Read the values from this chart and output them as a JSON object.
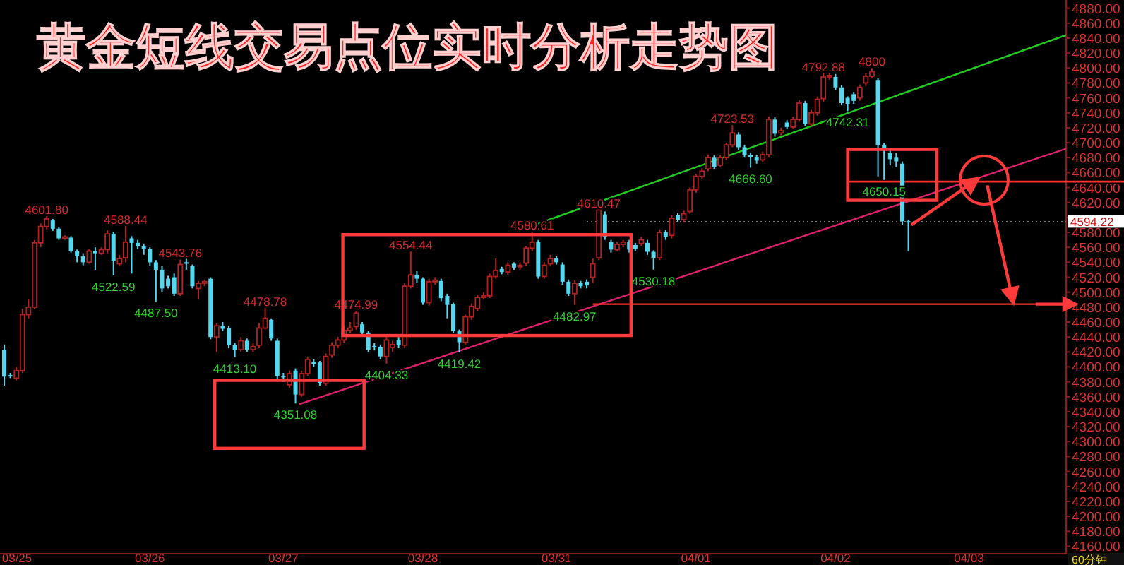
{
  "chart_data": {
    "type": "candlestick",
    "title": "黄金短线交易点位实时分析走势图",
    "categories": [
      null,
      "03/25",
      null,
      null,
      null,
      null,
      null,
      null,
      null,
      null,
      null,
      null,
      null,
      null,
      null,
      null,
      null,
      null,
      null,
      null,
      null,
      null,
      null,
      null,
      "03/26",
      null,
      null,
      null,
      null,
      null,
      null,
      null,
      null,
      null,
      null,
      null,
      null,
      null,
      null,
      null,
      null,
      null,
      null,
      null,
      null,
      null,
      "03/27",
      null,
      null,
      null,
      null,
      null,
      null,
      null,
      null,
      null,
      null,
      null,
      null,
      null,
      null,
      null,
      null,
      null,
      null,
      null,
      null,
      null,
      null,
      "03/28",
      null,
      null,
      null,
      null,
      null,
      null,
      null,
      null,
      null,
      null,
      null,
      null,
      null,
      null,
      null,
      null,
      null,
      null,
      null,
      null,
      null,
      "03/31",
      null,
      null,
      null,
      null,
      null,
      null,
      null,
      null,
      null,
      null,
      null,
      null,
      null,
      null,
      null,
      null,
      null,
      null,
      null,
      null,
      null,
      null,
      "04/01",
      null,
      null,
      null,
      null,
      null,
      null,
      null,
      null,
      null,
      null,
      null,
      null,
      null,
      null,
      null,
      null,
      null,
      null,
      null,
      null,
      null,
      null,
      "04/02",
      null,
      null,
      null,
      null,
      null,
      null,
      null,
      null,
      null,
      null,
      null,
      null,
      null,
      null,
      null,
      null,
      null,
      null,
      null,
      null,
      null,
      "04/03",
      null,
      null,
      null,
      null,
      null,
      null,
      null,
      null,
      null,
      null,
      null,
      null,
      null,
      null,
      null,
      null
    ],
    "ohlc": [
      [
        4423,
        4430,
        4375,
        4387
      ],
      [
        4389,
        4392,
        4385,
        4388
      ],
      [
        4385,
        4400,
        4382,
        4395
      ],
      [
        4395,
        4478,
        4392,
        4470
      ],
      [
        4470,
        4490,
        4465,
        4480
      ],
      [
        4480,
        4570,
        4478,
        4566
      ],
      [
        4566,
        4592,
        4560,
        4588
      ],
      [
        4588,
        4601.8,
        4584,
        4598
      ],
      [
        4596,
        4598,
        4582,
        4585
      ],
      [
        4585,
        4587,
        4570,
        4572
      ],
      [
        4572,
        4576,
        4570,
        4574
      ],
      [
        4573,
        4575,
        4553,
        4555
      ],
      [
        4555,
        4557,
        4540,
        4548
      ],
      [
        4548,
        4552,
        4536,
        4540
      ],
      [
        4540,
        4558,
        4538,
        4555
      ],
      [
        4555,
        4560,
        4530,
        4552
      ],
      [
        4552,
        4560,
        4550,
        4557
      ],
      [
        4557,
        4583,
        4552,
        4578
      ],
      [
        4578,
        4581,
        4522.59,
        4542
      ],
      [
        4538,
        4550,
        4535,
        4545
      ],
      [
        4546,
        4588.44,
        4540,
        4567
      ],
      [
        4572,
        4575,
        4525,
        4566
      ],
      [
        4566,
        4570,
        4558,
        4562
      ],
      [
        4562,
        4565,
        4550,
        4558
      ],
      [
        4558,
        4560,
        4535,
        4540
      ],
      [
        4540,
        4543,
        4487.5,
        4530
      ],
      [
        4530,
        4535,
        4500,
        4505
      ],
      [
        4518,
        4522,
        4505,
        4508
      ],
      [
        4520,
        4525,
        4495,
        4498
      ],
      [
        4498,
        4543.76,
        4495,
        4537
      ],
      [
        4540,
        4548,
        4530,
        4538
      ],
      [
        4535,
        4537,
        4505,
        4508
      ],
      [
        4505,
        4515,
        4490,
        4512
      ],
      [
        4512,
        4517,
        4508,
        4514
      ],
      [
        4518,
        4520,
        4437,
        4440
      ],
      [
        4440,
        4458,
        4420,
        4455
      ],
      [
        4455,
        4460,
        4448,
        4451
      ],
      [
        4452,
        4455,
        4425,
        4429
      ],
      [
        4429,
        4432,
        4413.1,
        4423
      ],
      [
        4423,
        4440,
        4420,
        4435
      ],
      [
        4435,
        4438,
        4420,
        4423
      ],
      [
        4423,
        4432,
        4420,
        4427
      ],
      [
        4429,
        4458,
        4425,
        4452
      ],
      [
        4452,
        4478.78,
        4450,
        4465
      ],
      [
        4463,
        4465,
        4435,
        4438
      ],
      [
        4435,
        4438,
        4380,
        4388
      ],
      [
        4388,
        4392,
        4380,
        4386
      ],
      [
        4376,
        4395,
        4372,
        4391
      ],
      [
        4395,
        4398,
        4351.08,
        4363
      ],
      [
        4363,
        4395,
        4360,
        4391
      ],
      [
        4391,
        4414,
        4388,
        4410
      ],
      [
        4407,
        4410,
        4400,
        4404
      ],
      [
        4406,
        4408,
        4375,
        4378
      ],
      [
        4378,
        4418,
        4375,
        4414
      ],
      [
        4416,
        4433,
        4412,
        4429
      ],
      [
        4429,
        4440,
        4425,
        4436
      ],
      [
        4436,
        4455,
        4432,
        4449
      ],
      [
        4449,
        4460,
        4445,
        4452
      ],
      [
        4454,
        4474.99,
        4450,
        4472
      ],
      [
        4457,
        4460,
        4443,
        4446
      ],
      [
        4446,
        4448,
        4420,
        4423
      ],
      [
        4428,
        4432,
        4422,
        4426
      ],
      [
        4427,
        4430,
        4410,
        4414
      ],
      [
        4414,
        4440,
        4404.33,
        4436
      ],
      [
        4426,
        4435,
        4420,
        4430
      ],
      [
        4436,
        4440,
        4425,
        4429
      ],
      [
        4429,
        4512,
        4425,
        4508
      ],
      [
        4508,
        4554.44,
        4505,
        4523
      ],
      [
        4523,
        4528,
        4512,
        4518
      ],
      [
        4518,
        4520,
        4483,
        4486
      ],
      [
        4486,
        4518,
        4482,
        4514
      ],
      [
        4514,
        4520,
        4510,
        4516
      ],
      [
        4515,
        4518,
        4488,
        4492
      ],
      [
        4495,
        4498,
        4465,
        4483
      ],
      [
        4484,
        4486,
        4445,
        4448
      ],
      [
        4448,
        4450,
        4419.42,
        4433
      ],
      [
        4433,
        4470,
        4430,
        4467
      ],
      [
        4467,
        4485,
        4463,
        4481
      ],
      [
        4478,
        4497,
        4475,
        4493
      ],
      [
        4493,
        4500,
        4490,
        4495
      ],
      [
        4495,
        4525,
        4492,
        4521
      ],
      [
        4521,
        4545,
        4518,
        4529
      ],
      [
        4531,
        4534,
        4524,
        4527
      ],
      [
        4527,
        4540,
        4523,
        4536
      ],
      [
        4538,
        4540,
        4530,
        4533
      ],
      [
        4534,
        4540,
        4530,
        4536
      ],
      [
        4539,
        4562,
        4535,
        4559
      ],
      [
        4559,
        4580.61,
        4555,
        4567
      ],
      [
        4567,
        4570,
        4518,
        4521
      ],
      [
        4521,
        4540,
        4518,
        4536
      ],
      [
        4538,
        4550,
        4535,
        4545
      ],
      [
        4545,
        4548,
        4537,
        4540
      ],
      [
        4537,
        4540,
        4510,
        4514
      ],
      [
        4514,
        4517,
        4495,
        4498
      ],
      [
        4498,
        4516,
        4482.97,
        4512
      ],
      [
        4512,
        4515,
        4505,
        4508
      ],
      [
        4514,
        4517,
        4505,
        4509
      ],
      [
        4520,
        4545,
        4512,
        4538
      ],
      [
        4546,
        4610.47,
        4543,
        4610
      ],
      [
        4604,
        4608,
        4570,
        4574
      ],
      [
        4567,
        4570,
        4553,
        4557
      ],
      [
        4557,
        4567,
        4555,
        4564
      ],
      [
        4564,
        4570,
        4560,
        4567
      ],
      [
        4567,
        4570,
        4553,
        4557
      ],
      [
        4563,
        4566,
        4555,
        4558
      ],
      [
        4565,
        4574,
        4562,
        4570
      ],
      [
        4566,
        4570,
        4550,
        4554
      ],
      [
        4554,
        4556,
        4530.18,
        4546
      ],
      [
        4546,
        4584,
        4543,
        4580
      ],
      [
        4580,
        4583,
        4570,
        4574
      ],
      [
        4576,
        4603,
        4572,
        4599
      ],
      [
        4603,
        4606,
        4594,
        4597
      ],
      [
        4597,
        4609,
        4593,
        4605
      ],
      [
        4608,
        4640,
        4605,
        4637
      ],
      [
        4637,
        4658,
        4633,
        4655
      ],
      [
        4655,
        4666,
        4652,
        4662
      ],
      [
        4665,
        4684,
        4662,
        4680
      ],
      [
        4680,
        4683,
        4664,
        4667
      ],
      [
        4670,
        4684,
        4667,
        4680
      ],
      [
        4680,
        4700,
        4677,
        4697
      ],
      [
        4697,
        4723.53,
        4694,
        4713
      ],
      [
        4711,
        4714,
        4690,
        4694
      ],
      [
        4694,
        4697,
        4680,
        4684
      ],
      [
        4684,
        4687,
        4666.6,
        4681
      ],
      [
        4681,
        4684,
        4672,
        4676
      ],
      [
        4677,
        4688,
        4674,
        4684
      ],
      [
        4684,
        4735,
        4680,
        4731
      ],
      [
        4731,
        4734,
        4708,
        4712
      ],
      [
        4713,
        4720,
        4710,
        4716
      ],
      [
        4727,
        4730,
        4718,
        4721
      ],
      [
        4721,
        4735,
        4718,
        4731
      ],
      [
        4731,
        4757,
        4728,
        4753
      ],
      [
        4753,
        4756,
        4722,
        4725
      ],
      [
        4725,
        4744,
        4722,
        4740
      ],
      [
        4740,
        4762,
        4736,
        4758
      ],
      [
        4759,
        4792.88,
        4755,
        4788
      ],
      [
        4788,
        4795,
        4784,
        4790
      ],
      [
        4788,
        4792,
        4770,
        4774
      ],
      [
        4774,
        4777,
        4750,
        4753
      ],
      [
        4760,
        4762,
        4742.31,
        4752
      ],
      [
        4765,
        4768,
        4752,
        4756
      ],
      [
        4760,
        4778,
        4756,
        4774
      ],
      [
        4780,
        4793,
        4776,
        4789
      ],
      [
        4789,
        4800,
        4786,
        4795
      ],
      [
        4784,
        4786,
        4655,
        4697
      ],
      [
        4697,
        4700,
        4650.15,
        4691
      ],
      [
        4686,
        4690,
        4670,
        4678
      ],
      [
        4680,
        4686,
        4668,
        4675
      ],
      [
        4672,
        4675,
        4590,
        4595
      ],
      [
        4595,
        4597,
        4555,
        4594.22
      ],
      null,
      null,
      null,
      null,
      null,
      null,
      null,
      null,
      null,
      null,
      null,
      null,
      null,
      null,
      null,
      null,
      null,
      null,
      null,
      null,
      null,
      null,
      null,
      null,
      null,
      null
    ],
    "ylim": [
      4150,
      4891
    ],
    "yticks": [
      {
        "value": 4880,
        "label": "4880.00"
      },
      {
        "value": 4860,
        "label": "4860.00"
      },
      {
        "value": 4840,
        "label": "4840.00"
      },
      {
        "value": 4820,
        "label": "4820.00"
      },
      {
        "value": 4800,
        "label": "4800.00"
      },
      {
        "value": 4780,
        "label": "4780.00"
      },
      {
        "value": 4760,
        "label": "4760.00"
      },
      {
        "value": 4740,
        "label": "4740.00"
      },
      {
        "value": 4720,
        "label": "4720.00"
      },
      {
        "value": 4700,
        "label": "4700.00"
      },
      {
        "value": 4680,
        "label": "4680.00"
      },
      {
        "value": 4660,
        "label": "4660.00"
      },
      {
        "value": 4640,
        "label": "4640.00"
      },
      {
        "value": 4620,
        "label": "4620.00"
      },
      {
        "value": 4600,
        "label": null
      },
      {
        "value": 4580,
        "label": "4580.00"
      },
      {
        "value": 4560,
        "label": "4560.00"
      },
      {
        "value": 4540,
        "label": "4540.00"
      },
      {
        "value": 4520,
        "label": "4520.00"
      },
      {
        "value": 4500,
        "label": "4500.00"
      },
      {
        "value": 4480,
        "label": "4480.00"
      },
      {
        "value": 4460,
        "label": "4460.00"
      },
      {
        "value": 4440,
        "label": "4440.00"
      },
      {
        "value": 4420,
        "label": "4420.00"
      },
      {
        "value": 4400,
        "label": "4400.00"
      },
      {
        "value": 4380,
        "label": "4380.00"
      },
      {
        "value": 4360,
        "label": "4360.00"
      },
      {
        "value": 4340,
        "label": "4340.00"
      },
      {
        "value": 4320,
        "label": "4320.00"
      },
      {
        "value": 4300,
        "label": "4300.00"
      },
      {
        "value": 4280,
        "label": "4280.00"
      },
      {
        "value": 4260,
        "label": "4260.00"
      },
      {
        "value": 4240,
        "label": "4240.00"
      },
      {
        "value": 4220,
        "label": "4220.00"
      },
      {
        "value": 4200,
        "label": "4200.00"
      },
      {
        "value": 4180,
        "label": "4180.00"
      },
      {
        "value": 4160,
        "label": "4160.00"
      }
    ],
    "ref_lines": [
      {
        "axis": "y",
        "value": 4594.22,
        "label": "4594.22",
        "line_style": "dotted"
      },
      {
        "axis": "y",
        "value": 4648,
        "color": "#ff3030",
        "line_style": "solid"
      }
    ],
    "annotations": [
      {
        "text": "4601.80",
        "y": 4601.8
      },
      {
        "text": "4588.44",
        "y": 4588.44
      },
      {
        "text": "4543.76",
        "y": 4543.76
      },
      {
        "text": "4478.78",
        "y": 4478.78
      },
      {
        "text": "4474.99",
        "y": 4474.99
      },
      {
        "text": "4554.44",
        "y": 4554.44
      },
      {
        "text": "4580.61",
        "y": 4580.61
      },
      {
        "text": "4610.47",
        "y": 4610.47
      },
      {
        "text": "4723.53",
        "y": 4723.53
      },
      {
        "text": "4792.88",
        "y": 4792.88
      },
      {
        "text": "4800",
        "y": 4800
      },
      {
        "text": "4522.59",
        "y": 4522.59
      },
      {
        "text": "4487.50",
        "y": 4487.5
      },
      {
        "text": "4413.10",
        "y": 4413.1
      },
      {
        "text": "4351.08",
        "y": 4351.08
      },
      {
        "text": "4404.33",
        "y": 4404.33
      },
      {
        "text": "4419.42",
        "y": 4419.42
      },
      {
        "text": "4482.97",
        "y": 4482.97
      },
      {
        "text": "4530.18",
        "y": 4530.18
      },
      {
        "text": "4666.60",
        "y": 4666.6
      },
      {
        "text": "4742.31",
        "y": 4742.31
      },
      {
        "text": "4650.15",
        "y": 4650.15
      },
      "60分钟"
    ]
  }
}
